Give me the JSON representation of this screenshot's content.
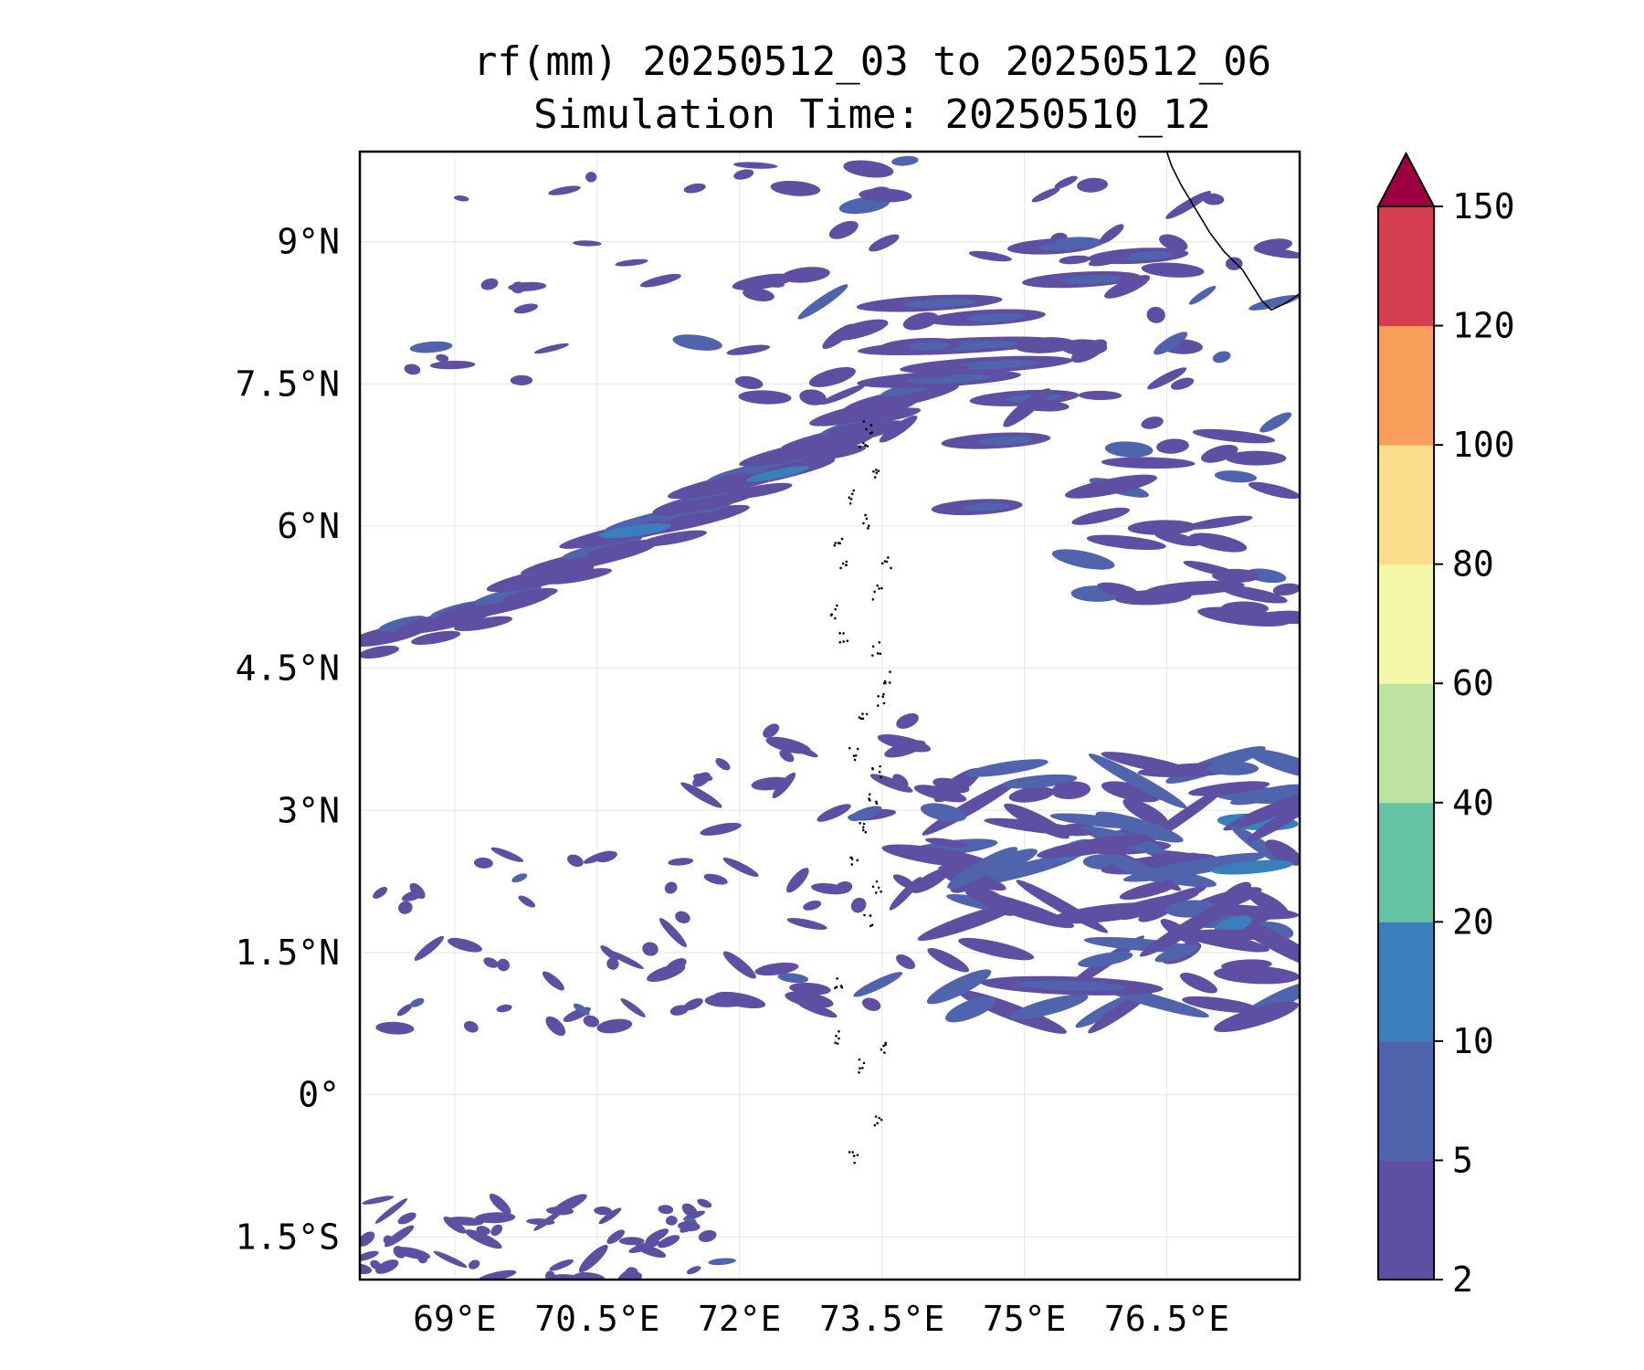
{
  "title": {
    "line1": "rf(mm) 20250512_03 to 20250512_06",
    "line2": "Simulation Time: 20250510_12"
  },
  "map": {
    "lon_range": [
      68.0,
      77.9
    ],
    "lat_range": [
      -1.95,
      9.95
    ],
    "lon_ticks": [
      {
        "value": 69.0,
        "label": "69°E"
      },
      {
        "value": 70.5,
        "label": "70.5°E"
      },
      {
        "value": 72.0,
        "label": "72°E"
      },
      {
        "value": 73.5,
        "label": "73.5°E"
      },
      {
        "value": 75.0,
        "label": "75°E"
      },
      {
        "value": 76.5,
        "label": "76.5°E"
      }
    ],
    "lat_ticks": [
      {
        "value": 9.0,
        "label": "9°N"
      },
      {
        "value": 7.5,
        "label": "7.5°N"
      },
      {
        "value": 6.0,
        "label": "6°N"
      },
      {
        "value": 4.5,
        "label": "4.5°N"
      },
      {
        "value": 3.0,
        "label": "3°N"
      },
      {
        "value": 1.5,
        "label": "1.5°N"
      },
      {
        "value": 0.0,
        "label": "0°"
      },
      {
        "value": -1.5,
        "label": "1.5°S"
      }
    ],
    "grid": true
  },
  "colorbar": {
    "levels": [
      "2",
      "5",
      "10",
      "20",
      "40",
      "60",
      "80",
      "100",
      "120",
      "150"
    ],
    "colors": [
      "#5e4fa2",
      "#4f64ad",
      "#3a7ebb",
      "#66c2a5",
      "#bde3a1",
      "#f3f9a8",
      "#fbdc8a",
      "#f99e5a",
      "#d53e4f"
    ],
    "extend_color": "#9e0142",
    "extend": "max"
  },
  "rain_colors": {
    "light": "#5e4fa2",
    "medium": "#4f64ad",
    "heavy": "#3a7ebb"
  }
}
